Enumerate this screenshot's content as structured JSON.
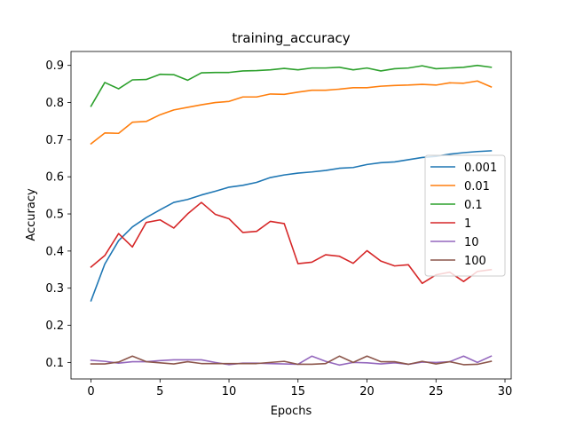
{
  "chart_data": {
    "type": "line",
    "title": "training_accuracy",
    "xlabel": "Epochs",
    "ylabel": "Accuracy",
    "xlim": [
      -1.45,
      30.45
    ],
    "ylim": [
      0.0555,
      0.9375
    ],
    "xticks": [
      0,
      5,
      10,
      15,
      20,
      25,
      30
    ],
    "yticks": [
      0.1,
      0.2,
      0.3,
      0.4,
      0.5,
      0.6,
      0.7,
      0.8,
      0.9
    ],
    "x": [
      0,
      1,
      2,
      3,
      4,
      5,
      6,
      7,
      8,
      9,
      10,
      11,
      12,
      13,
      14,
      15,
      16,
      17,
      18,
      19,
      20,
      21,
      22,
      23,
      24,
      25,
      26,
      27,
      28,
      29
    ],
    "legend_position": "center-right",
    "grid": false,
    "series": [
      {
        "name": "0.001",
        "color": "#1f77b4",
        "values": [
          0.266,
          0.365,
          0.428,
          0.465,
          0.49,
          0.511,
          0.531,
          0.539,
          0.551,
          0.561,
          0.572,
          0.577,
          0.585,
          0.598,
          0.605,
          0.61,
          0.613,
          0.617,
          0.623,
          0.625,
          0.633,
          0.638,
          0.64,
          0.646,
          0.652,
          0.655,
          0.661,
          0.665,
          0.668,
          0.67
        ]
      },
      {
        "name": "0.01",
        "color": "#ff7f0e",
        "values": [
          0.689,
          0.718,
          0.717,
          0.747,
          0.749,
          0.767,
          0.78,
          0.787,
          0.794,
          0.8,
          0.803,
          0.815,
          0.815,
          0.823,
          0.822,
          0.828,
          0.833,
          0.833,
          0.836,
          0.84,
          0.84,
          0.844,
          0.846,
          0.847,
          0.849,
          0.847,
          0.853,
          0.852,
          0.858,
          0.842
        ]
      },
      {
        "name": "0.1",
        "color": "#2ca02c",
        "values": [
          0.79,
          0.854,
          0.837,
          0.861,
          0.862,
          0.876,
          0.875,
          0.86,
          0.88,
          0.881,
          0.881,
          0.885,
          0.886,
          0.888,
          0.892,
          0.888,
          0.893,
          0.893,
          0.895,
          0.888,
          0.893,
          0.885,
          0.891,
          0.893,
          0.899,
          0.891,
          0.893,
          0.895,
          0.9,
          0.895
        ]
      },
      {
        "name": "1",
        "color": "#d62728",
        "values": [
          0.357,
          0.388,
          0.447,
          0.411,
          0.477,
          0.484,
          0.462,
          0.5,
          0.531,
          0.499,
          0.487,
          0.45,
          0.453,
          0.48,
          0.474,
          0.366,
          0.37,
          0.39,
          0.386,
          0.367,
          0.401,
          0.373,
          0.36,
          0.363,
          0.313,
          0.336,
          0.343,
          0.318,
          0.345,
          0.35
        ]
      },
      {
        "name": "10",
        "color": "#9467bd",
        "values": [
          0.106,
          0.103,
          0.098,
          0.102,
          0.102,
          0.105,
          0.107,
          0.107,
          0.107,
          0.1,
          0.094,
          0.098,
          0.098,
          0.097,
          0.096,
          0.095,
          0.117,
          0.103,
          0.093,
          0.1,
          0.099,
          0.096,
          0.099,
          0.095,
          0.101,
          0.1,
          0.102,
          0.117,
          0.1,
          0.117
        ]
      },
      {
        "name": "100",
        "color": "#8c564b",
        "values": [
          0.096,
          0.096,
          0.101,
          0.117,
          0.102,
          0.099,
          0.096,
          0.102,
          0.097,
          0.097,
          0.097,
          0.097,
          0.097,
          0.1,
          0.103,
          0.095,
          0.095,
          0.097,
          0.117,
          0.1,
          0.117,
          0.102,
          0.102,
          0.095,
          0.103,
          0.096,
          0.102,
          0.094,
          0.095,
          0.103
        ]
      }
    ]
  }
}
